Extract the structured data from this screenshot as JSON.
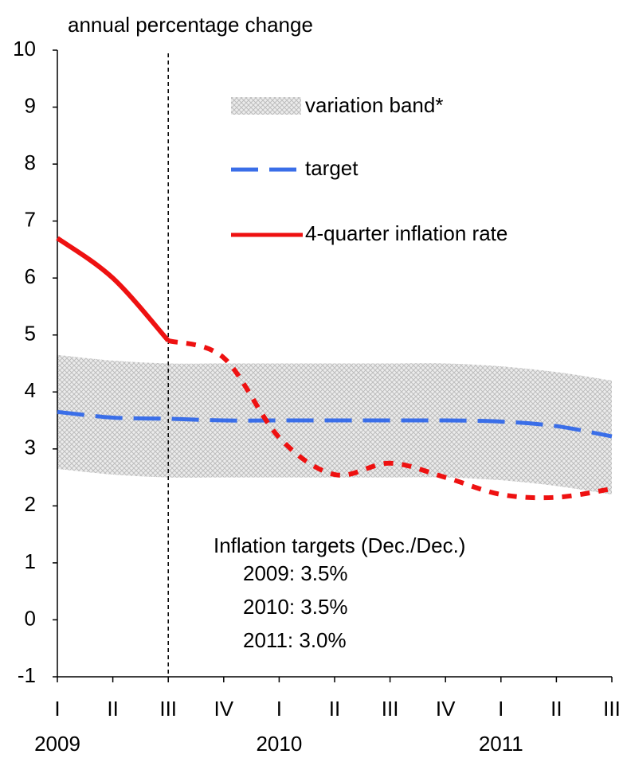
{
  "chart_data": {
    "type": "line",
    "y_label": "annual percentage change",
    "categories": [
      "I",
      "II",
      "III",
      "IV",
      "I",
      "II",
      "III",
      "IV",
      "I",
      "II",
      "III"
    ],
    "year_labels": [
      "2009",
      null,
      null,
      null,
      "2010",
      null,
      null,
      null,
      "2011",
      null,
      null
    ],
    "ylim": [
      -1,
      10
    ],
    "yticks": [
      -1,
      0,
      1,
      2,
      3,
      4,
      5,
      6,
      7,
      8,
      9,
      10
    ],
    "grid": false,
    "vline_at_category": 2,
    "band": {
      "name": "variation band*",
      "color": "#c8c8c8",
      "upper": [
        4.65,
        4.55,
        4.5,
        4.5,
        4.5,
        4.5,
        4.5,
        4.5,
        4.45,
        4.35,
        4.2
      ],
      "lower": [
        2.65,
        2.55,
        2.5,
        2.5,
        2.5,
        2.5,
        2.5,
        2.5,
        2.45,
        2.35,
        2.2
      ]
    },
    "series": [
      {
        "name": "target",
        "color": "#3a6ee8",
        "style": "long-dash",
        "values": [
          3.65,
          3.55,
          3.53,
          3.5,
          3.5,
          3.5,
          3.5,
          3.5,
          3.48,
          3.4,
          3.22
        ]
      },
      {
        "name": "4-quarter inflation rate",
        "color": "#ee1111",
        "style": "solid",
        "values": [
          6.7,
          6.0,
          4.9,
          null,
          null,
          null,
          null,
          null,
          null,
          null,
          null
        ]
      },
      {
        "color": "#ee1111",
        "style": "dotted",
        "values": [
          null,
          null,
          4.9,
          4.6,
          3.2,
          2.55,
          2.75,
          2.5,
          2.2,
          2.15,
          2.3
        ]
      }
    ],
    "annotations": [
      "Inflation targets (Dec./Dec.)",
      "2009: 3.5%",
      "2010: 3.5%",
      "2011: 3.0%"
    ]
  }
}
